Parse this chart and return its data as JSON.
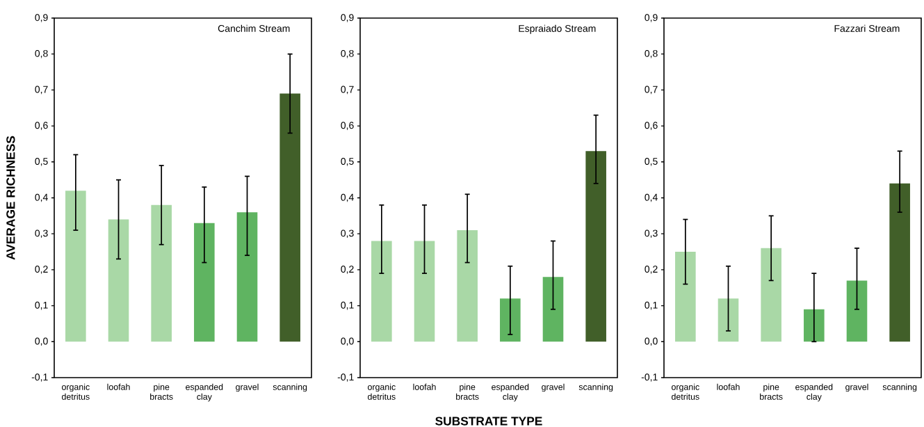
{
  "chart_data": [
    {
      "type": "bar",
      "title": "Canchim Stream",
      "ylabel": "AVERAGE RICHNESS",
      "categories": [
        "organic detritus",
        "loofah",
        "pine bracts",
        "espanded clay",
        "gravel",
        "scanning"
      ],
      "values": [
        0.42,
        0.34,
        0.38,
        0.33,
        0.36,
        0.69
      ],
      "errors": [
        [
          0.31,
          0.52
        ],
        [
          0.23,
          0.45
        ],
        [
          0.27,
          0.49
        ],
        [
          0.22,
          0.43
        ],
        [
          0.24,
          0.46
        ],
        [
          0.58,
          0.8
        ]
      ],
      "colors": [
        "#a9d8a6",
        "#a9d8a6",
        "#a9d8a6",
        "#5fb461",
        "#5fb461",
        "#415f29"
      ],
      "ylim": [
        -0.1,
        0.9
      ],
      "yticks": [
        {
          "value": -0.1,
          "label": "-0,1"
        },
        {
          "value": 0,
          "label": "0,0"
        },
        {
          "value": 0.1,
          "label": "0,1"
        },
        {
          "value": 0.2,
          "label": "0,2"
        },
        {
          "value": 0.3,
          "label": "0,3"
        },
        {
          "value": 0.4,
          "label": "0,4"
        },
        {
          "value": 0.5,
          "label": "0,5"
        },
        {
          "value": 0.6,
          "label": "0,6"
        },
        {
          "value": 0.7,
          "label": "0,7"
        },
        {
          "value": 0.8,
          "label": "0,8"
        },
        {
          "value": 0.9,
          "label": "0,9"
        }
      ]
    },
    {
      "type": "bar",
      "title": "Espraiado Stream",
      "xlabel": "SUBSTRATE TYPE",
      "categories": [
        "organic detritus",
        "loofah",
        "pine bracts",
        "espanded clay",
        "gravel",
        "scanning"
      ],
      "values": [
        0.28,
        0.28,
        0.31,
        0.12,
        0.18,
        0.53
      ],
      "errors": [
        [
          0.19,
          0.38
        ],
        [
          0.19,
          0.38
        ],
        [
          0.22,
          0.41
        ],
        [
          0.02,
          0.21
        ],
        [
          0.09,
          0.28
        ],
        [
          0.44,
          0.63
        ]
      ],
      "colors": [
        "#a9d8a6",
        "#a9d8a6",
        "#a9d8a6",
        "#5fb461",
        "#5fb461",
        "#415f29"
      ],
      "ylim": [
        -0.1,
        0.9
      ],
      "yticks": [
        {
          "value": -0.1,
          "label": "-0,1"
        },
        {
          "value": 0,
          "label": "0,0"
        },
        {
          "value": 0.1,
          "label": "0,1"
        },
        {
          "value": 0.2,
          "label": "0,2"
        },
        {
          "value": 0.3,
          "label": "0,3"
        },
        {
          "value": 0.4,
          "label": "0,4"
        },
        {
          "value": 0.5,
          "label": "0,5"
        },
        {
          "value": 0.6,
          "label": "0,6"
        },
        {
          "value": 0.7,
          "label": "0,7"
        },
        {
          "value": 0.8,
          "label": "0,8"
        },
        {
          "value": 0.9,
          "label": "0,9"
        }
      ]
    },
    {
      "type": "bar",
      "title": "Fazzari Stream",
      "categories": [
        "organic detritus",
        "loofah",
        "pine bracts",
        "espanded clay",
        "gravel",
        "scanning"
      ],
      "values": [
        0.25,
        0.12,
        0.26,
        0.09,
        0.17,
        0.44
      ],
      "errors": [
        [
          0.16,
          0.34
        ],
        [
          0.03,
          0.21
        ],
        [
          0.17,
          0.35
        ],
        [
          0.0,
          0.19
        ],
        [
          0.09,
          0.26
        ],
        [
          0.36,
          0.53
        ]
      ],
      "colors": [
        "#a9d8a6",
        "#a9d8a6",
        "#a9d8a6",
        "#5fb461",
        "#5fb461",
        "#415f29"
      ],
      "ylim": [
        -0.1,
        0.9
      ],
      "yticks": [
        {
          "value": -0.1,
          "label": "-0,1"
        },
        {
          "value": 0,
          "label": "0,0"
        },
        {
          "value": 0.1,
          "label": "0,1"
        },
        {
          "value": 0.2,
          "label": "0,2"
        },
        {
          "value": 0.3,
          "label": "0,3"
        },
        {
          "value": 0.4,
          "label": "0,4"
        },
        {
          "value": 0.5,
          "label": "0,5"
        },
        {
          "value": 0.6,
          "label": "0,6"
        },
        {
          "value": 0.7,
          "label": "0,7"
        },
        {
          "value": 0.8,
          "label": "0,8"
        },
        {
          "value": 0.9,
          "label": "0,9"
        }
      ]
    }
  ]
}
